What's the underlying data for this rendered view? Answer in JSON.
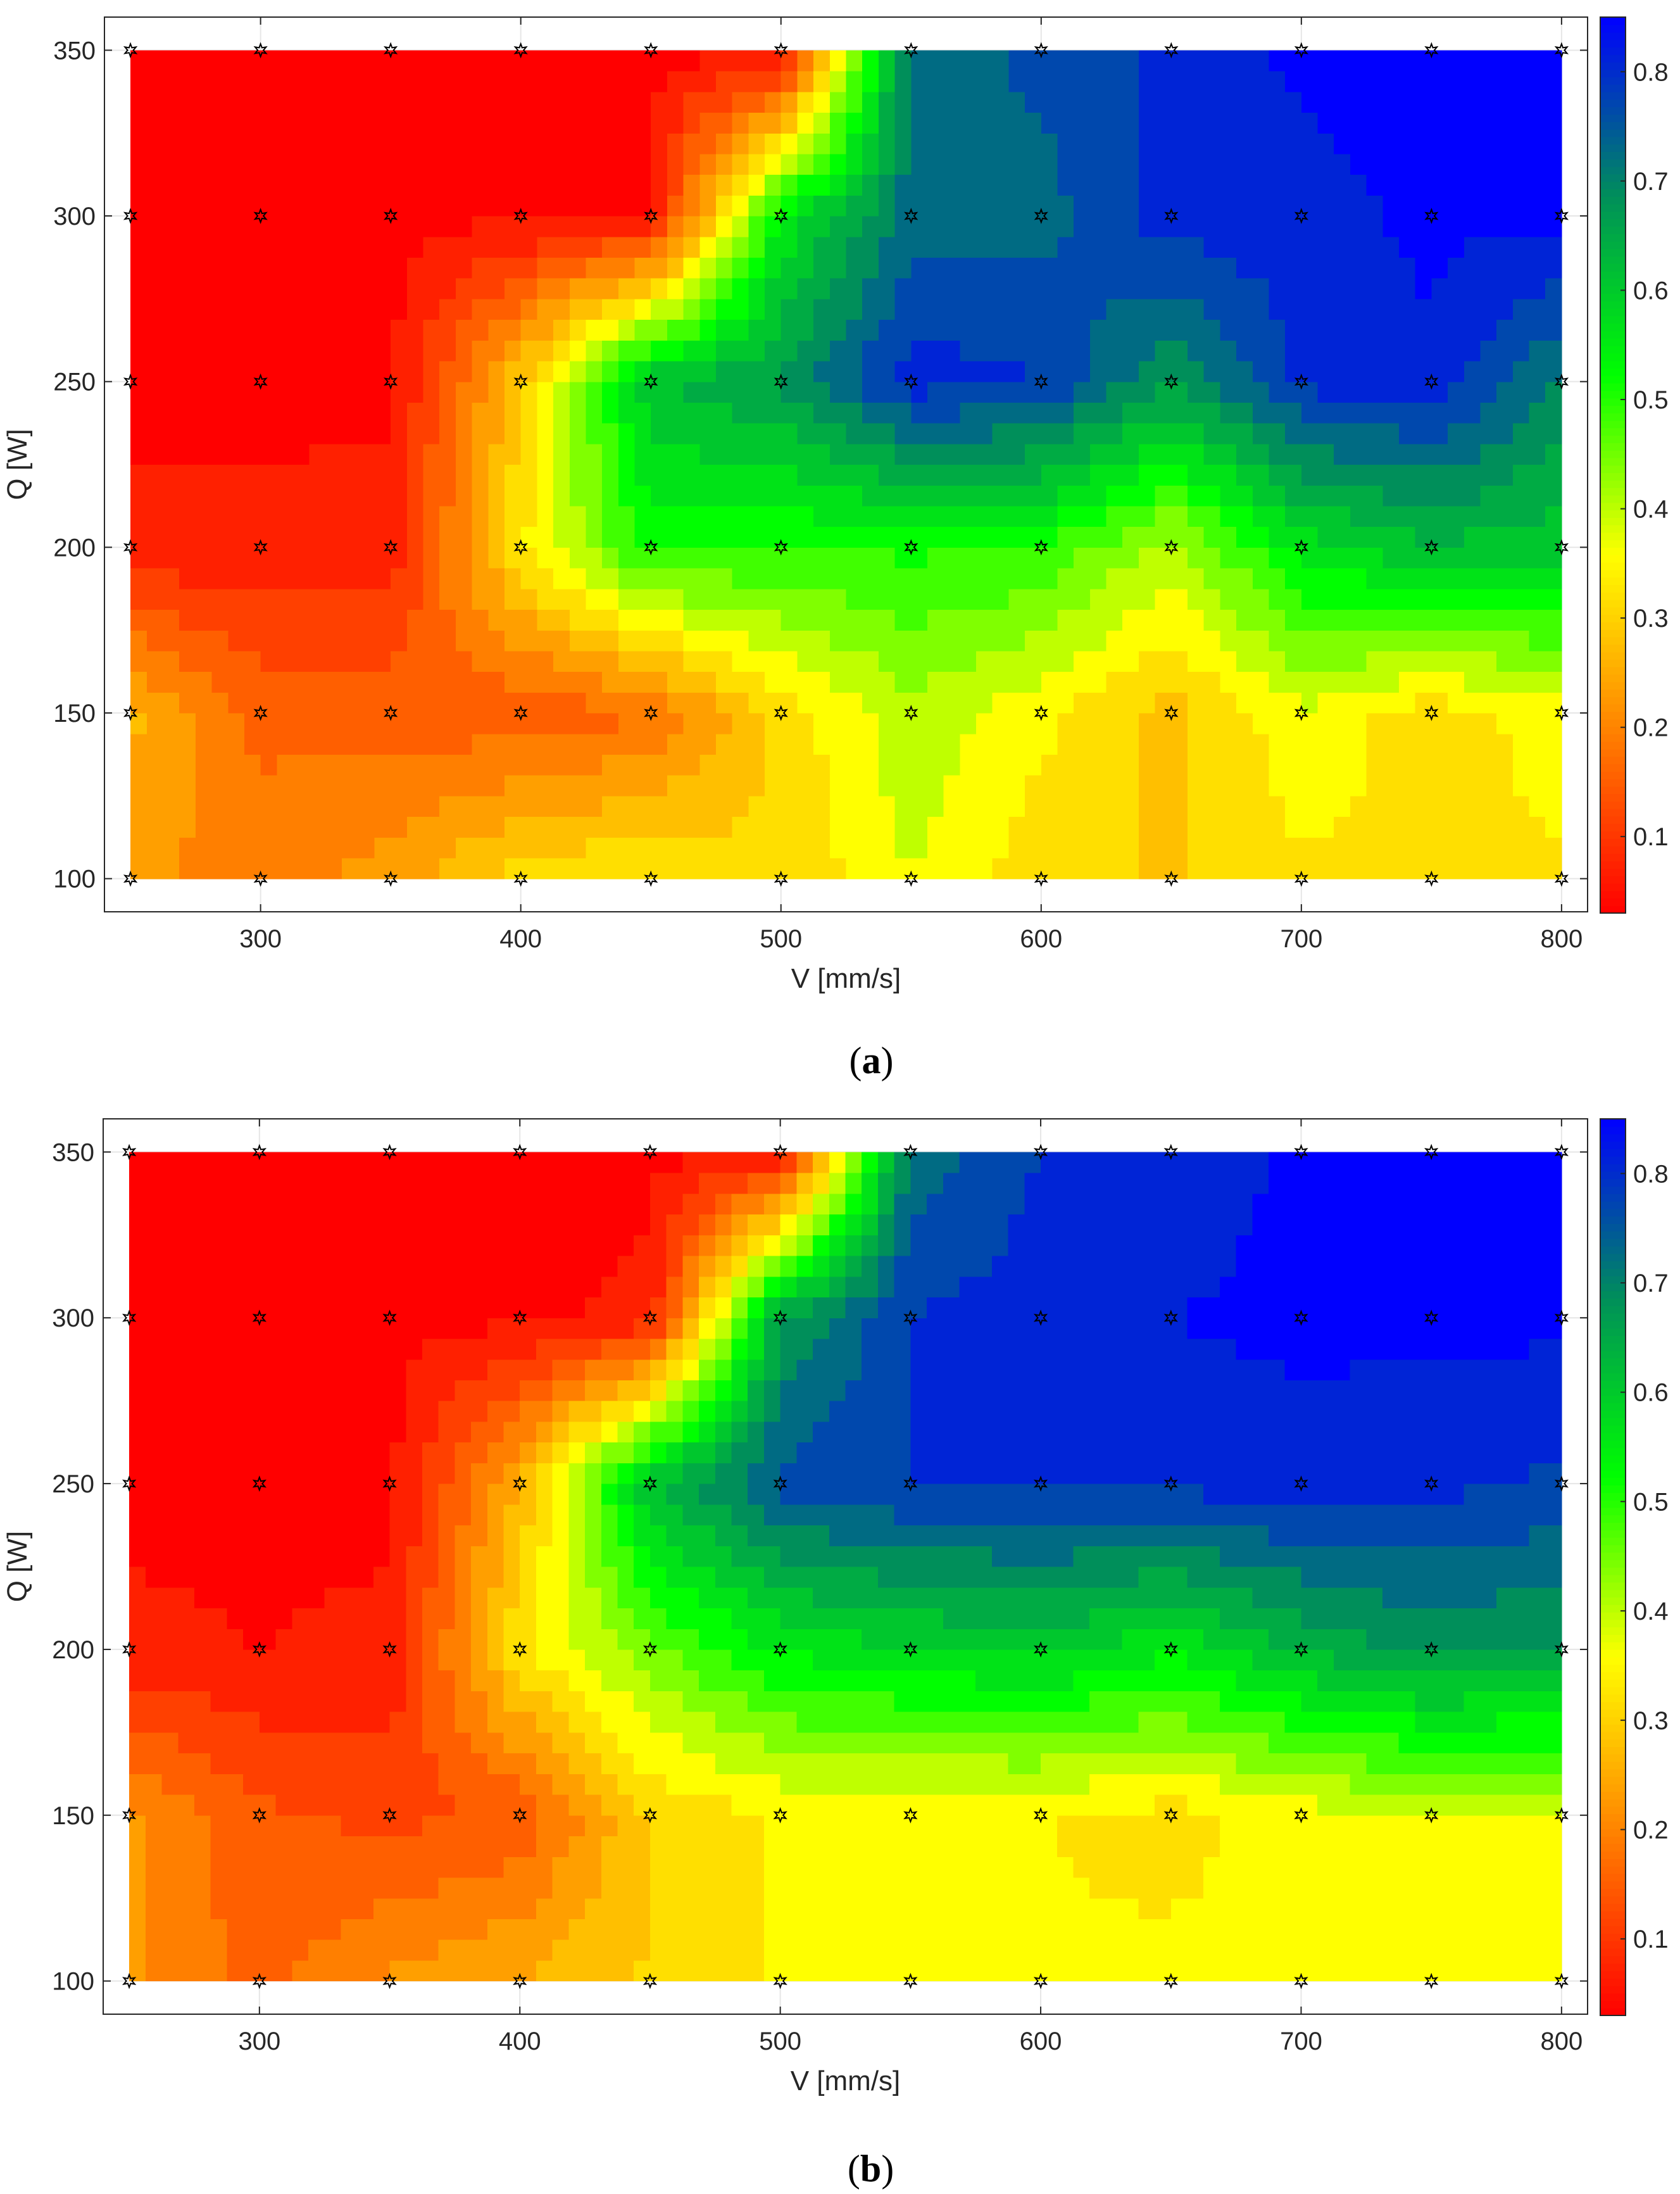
{
  "colors": {
    "colormap": [
      "#ff0000",
      "#ff7f00",
      "#ffff00",
      "#00ff00",
      "#008f5a",
      "#0000ff"
    ],
    "marker": "#000000",
    "axis": "#262626",
    "grid": "#e6e6e6"
  },
  "chart_data": [
    {
      "type": "heatmap",
      "subtype": "filled-contour",
      "caption_letter": "a",
      "xlabel": "V [mm/s]",
      "ylabel": "Q [W]",
      "x": [
        250,
        300,
        350,
        400,
        450,
        500,
        550,
        600,
        650,
        700,
        750,
        800
      ],
      "y": [
        100,
        150,
        200,
        250,
        300,
        350
      ],
      "xlim": [
        240,
        810
      ],
      "ylim": [
        90,
        360
      ],
      "xticks": [
        300,
        400,
        500,
        600,
        700,
        800
      ],
      "yticks": [
        100,
        150,
        200,
        250,
        300,
        350
      ],
      "colorbar_ticks": [
        0.1,
        0.2,
        0.3,
        0.4,
        0.5,
        0.6,
        0.7,
        0.8
      ],
      "colorbar_range": [
        0.03,
        0.85
      ],
      "grid": true,
      "markers": "star at every measurement point",
      "z": [
        [
          0.22,
          0.2,
          0.23,
          0.32,
          0.34,
          0.3,
          0.38,
          0.31,
          0.29,
          0.33,
          0.33,
          0.33
        ],
        [
          0.27,
          0.16,
          0.16,
          0.14,
          0.17,
          0.31,
          0.41,
          0.35,
          0.28,
          0.37,
          0.31,
          0.36
        ],
        [
          0.06,
          0.06,
          0.07,
          0.33,
          0.52,
          0.5,
          0.51,
          0.5,
          0.4,
          0.56,
          0.62,
          0.6
        ],
        [
          0.04,
          0.04,
          0.04,
          0.29,
          0.62,
          0.67,
          0.81,
          0.79,
          0.67,
          0.8,
          0.82,
          0.7
        ],
        [
          0.04,
          0.04,
          0.04,
          0.04,
          0.05,
          0.55,
          0.73,
          0.73,
          0.81,
          0.81,
          0.84,
          0.84
        ],
        [
          0.04,
          0.04,
          0.04,
          0.04,
          0.04,
          0.04,
          0.72,
          0.76,
          0.8,
          0.84,
          0.85,
          0.85
        ]
      ]
    },
    {
      "type": "heatmap",
      "subtype": "filled-contour",
      "caption_letter": "b",
      "xlabel": "V [mm/s]",
      "ylabel": "Q [W]",
      "x": [
        250,
        300,
        350,
        400,
        450,
        500,
        550,
        600,
        650,
        700,
        750,
        800
      ],
      "y": [
        100,
        150,
        200,
        250,
        300,
        350
      ],
      "xlim": [
        240,
        810
      ],
      "ylim": [
        90,
        360
      ],
      "xticks": [
        300,
        400,
        500,
        600,
        700,
        800
      ],
      "yticks": [
        100,
        150,
        200,
        250,
        300,
        350
      ],
      "colorbar_ticks": [
        0.1,
        0.2,
        0.3,
        0.4,
        0.5,
        0.6,
        0.7,
        0.8
      ],
      "colorbar_range": [
        0.03,
        0.85
      ],
      "grid": true,
      "markers": "star at every measurement point",
      "z": [
        [
          0.22,
          0.16,
          0.22,
          0.26,
          0.3,
          0.34,
          0.34,
          0.34,
          0.35,
          0.35,
          0.35,
          0.35
        ],
        [
          0.22,
          0.14,
          0.12,
          0.14,
          0.3,
          0.34,
          0.34,
          0.34,
          0.32,
          0.36,
          0.38,
          0.38
        ],
        [
          0.06,
          0.05,
          0.06,
          0.33,
          0.45,
          0.55,
          0.58,
          0.6,
          0.55,
          0.63,
          0.68,
          0.66
        ],
        [
          0.04,
          0.04,
          0.04,
          0.26,
          0.62,
          0.76,
          0.79,
          0.8,
          0.8,
          0.81,
          0.8,
          0.78
        ],
        [
          0.04,
          0.04,
          0.04,
          0.04,
          0.06,
          0.66,
          0.79,
          0.81,
          0.83,
          0.84,
          0.84,
          0.84
        ],
        [
          0.04,
          0.04,
          0.04,
          0.04,
          0.04,
          0.04,
          0.72,
          0.79,
          0.8,
          0.84,
          0.85,
          0.85
        ]
      ]
    }
  ]
}
